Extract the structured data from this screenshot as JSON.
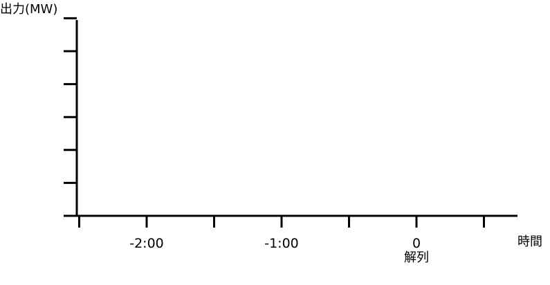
{
  "chart_data": {
    "type": "line",
    "ylabel": "出力(MW)",
    "xlabel": "時間",
    "x_ticks": [
      "-2:00",
      "-1:00",
      "0"
    ],
    "x_tick_values": [
      -2,
      -1,
      0
    ],
    "x_minor_ticks": [
      -2.5,
      -1.5,
      -0.5,
      0.5
    ],
    "xlim": [
      -2.5,
      0.75
    ],
    "y_tick_count": 6,
    "series": [],
    "annotations": [
      {
        "text": "解列",
        "x": 0
      }
    ],
    "grid": false,
    "colors": {
      "axis": "#000000",
      "text": "#000000"
    }
  }
}
